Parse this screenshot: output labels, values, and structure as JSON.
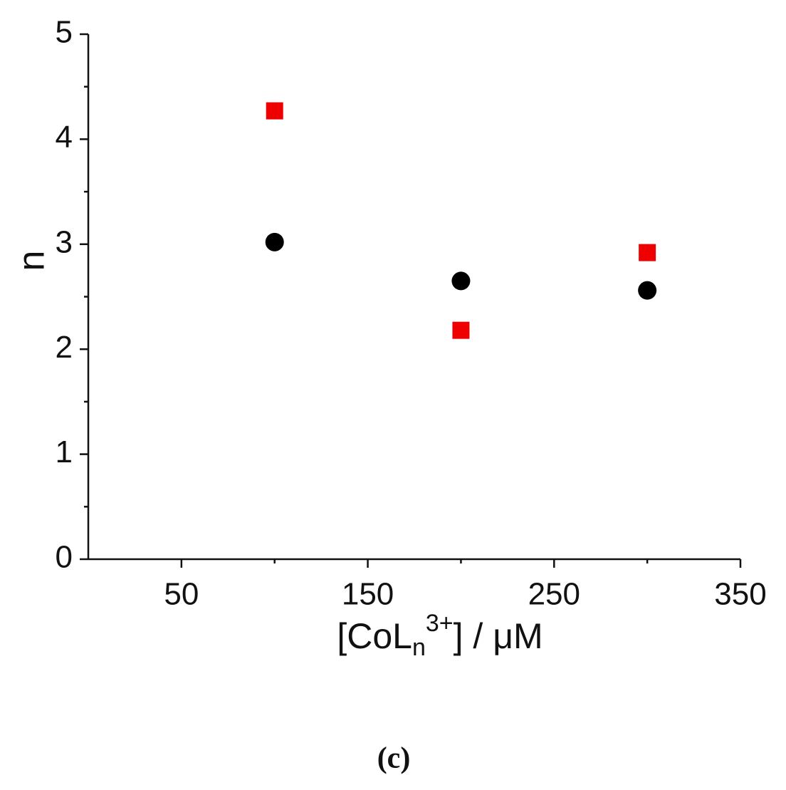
{
  "chart_data": {
    "type": "scatter",
    "y_label": "n",
    "x_label": [
      "[CoL",
      "n",
      "3+",
      "] / μM"
    ],
    "x": [
      100,
      200,
      300
    ],
    "series": [
      {
        "marker": "square",
        "color": "#ee0000",
        "values": [
          4.27,
          2.18,
          2.92
        ]
      },
      {
        "marker": "circle",
        "color": "#000000",
        "values": [
          3.02,
          2.65,
          2.56
        ]
      }
    ],
    "xlim": [
      0,
      350
    ],
    "xticks": [
      50,
      150,
      250,
      350
    ],
    "xminorticks": [
      100,
      200,
      300
    ],
    "ylim": [
      0,
      5
    ],
    "yticks": [
      0,
      1,
      2,
      3,
      4,
      5
    ],
    "yminorticks": [
      0.5,
      1.5,
      2.5,
      3.5,
      4.5
    ],
    "grid": false
  },
  "caption": "(c)"
}
